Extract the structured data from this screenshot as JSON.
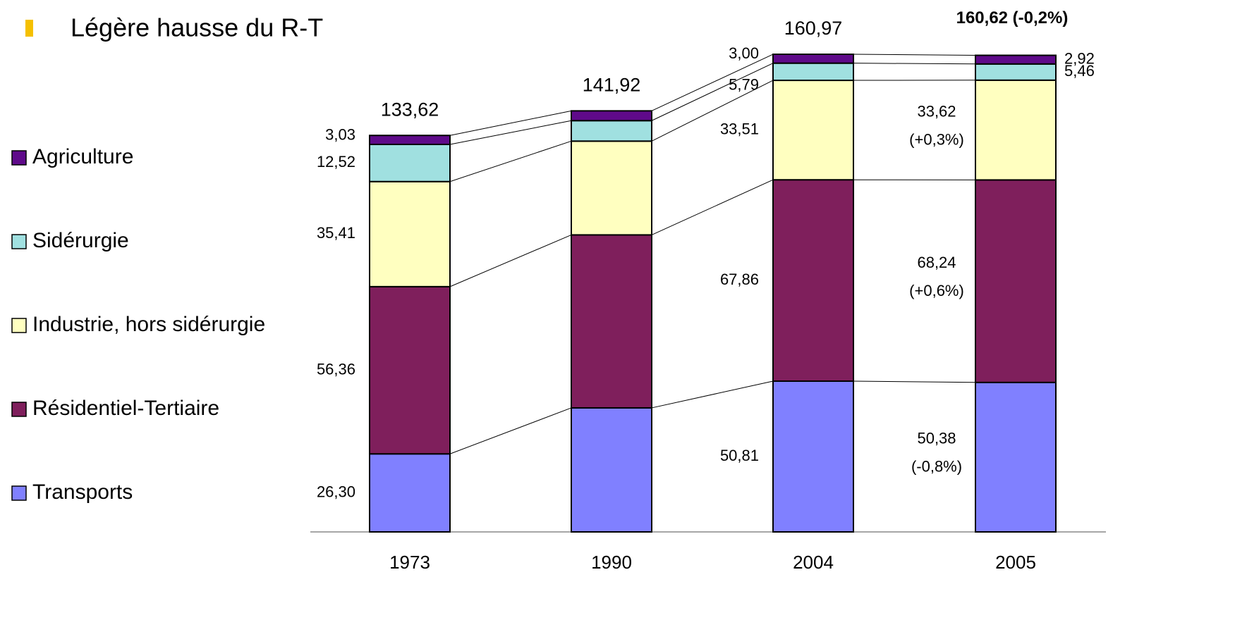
{
  "bullet": "Légère hausse du R-T",
  "chart_data": {
    "type": "stacked_bar",
    "categories": [
      "1973",
      "1990",
      "2004",
      "2005"
    ],
    "ylim": [
      0,
      170
    ],
    "totals": [
      133.62,
      141.92,
      160.97,
      160.62
    ],
    "total_labels": [
      "133,62",
      "141,92",
      "160,97",
      "160,62 (-0,2%)"
    ],
    "series": [
      {
        "name": "Transports",
        "color": "#8080ff",
        "values": [
          26.3,
          41.8,
          50.81,
          50.38
        ],
        "value_labels": [
          "26,30",
          null,
          "50,81",
          "50,38"
        ],
        "change_label": "(-0,8%)"
      },
      {
        "name": "Résidentiel-Tertiaire",
        "color": "#7f1f5c",
        "values": [
          56.36,
          58.3,
          67.86,
          68.24
        ],
        "value_labels": [
          "56,36",
          null,
          "67,86",
          "68,24"
        ],
        "change_label": "(+0,6%)"
      },
      {
        "name": "Industrie, hors sidérurgie",
        "color": "#ffffc0",
        "values": [
          35.41,
          31.6,
          33.51,
          33.62
        ],
        "value_labels": [
          "35,41",
          null,
          "33,51",
          "33,62"
        ],
        "change_label": "(+0,3%)"
      },
      {
        "name": "Sidérurgie",
        "color": "#a0e0e0",
        "values": [
          12.52,
          6.9,
          5.79,
          5.46
        ],
        "value_labels": [
          "12,52",
          null,
          "5,79",
          "5,46"
        ]
      },
      {
        "name": "Agriculture",
        "color": "#5f0a8a",
        "values": [
          3.03,
          3.3,
          3.0,
          2.92
        ],
        "value_labels": [
          "3,03",
          null,
          "3,00",
          "2,92"
        ]
      }
    ]
  }
}
